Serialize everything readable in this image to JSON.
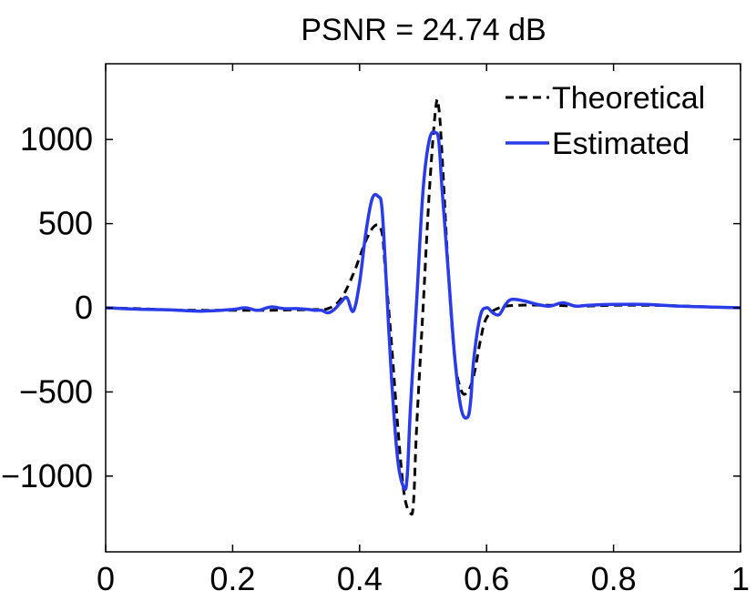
{
  "chart_data": {
    "type": "line",
    "title": "PSNR = 24.74 dB",
    "xlabel": "",
    "ylabel": "",
    "xlim": [
      0,
      1
    ],
    "ylim": [
      -1450,
      1450
    ],
    "x_ticks": [
      0,
      0.2,
      0.4,
      0.6,
      0.8,
      1
    ],
    "x_tick_labels": [
      "0",
      "0.2",
      "0.4",
      "0.6",
      "0.8",
      "1"
    ],
    "y_ticks": [
      -1000,
      -500,
      0,
      500,
      1000
    ],
    "y_tick_labels": [
      "−1000",
      "−500",
      "0",
      "500",
      "1000"
    ],
    "grid": false,
    "legend_position": "top-right",
    "series": [
      {
        "name": "Theoretical",
        "color": "#000000",
        "style": "dashed",
        "x": [
          0,
          0.05,
          0.1,
          0.15,
          0.2,
          0.25,
          0.3,
          0.33,
          0.35,
          0.37,
          0.39,
          0.41,
          0.425,
          0.435,
          0.44,
          0.45,
          0.46,
          0.47,
          0.48,
          0.485,
          0.49,
          0.5,
          0.51,
          0.52,
          0.525,
          0.53,
          0.54,
          0.55,
          0.56,
          0.57,
          0.58,
          0.59,
          0.6,
          0.62,
          0.65,
          0.7,
          0.75,
          0.8,
          0.85,
          0.9,
          0.95,
          1
        ],
        "y": [
          0,
          -5,
          -12,
          -15,
          -15,
          -15,
          -12,
          -10,
          -5,
          50,
          200,
          400,
          490,
          450,
          250,
          -200,
          -700,
          -1100,
          -1220,
          -1150,
          -700,
          0,
          700,
          1190,
          1180,
          900,
          200,
          -300,
          -490,
          -500,
          -400,
          -200,
          -60,
          0,
          15,
          15,
          10,
          15,
          15,
          12,
          5,
          0
        ]
      },
      {
        "name": "Estimated",
        "color": "#2a3bea",
        "style": "solid",
        "x": [
          0,
          0.05,
          0.1,
          0.15,
          0.2,
          0.22,
          0.24,
          0.26,
          0.28,
          0.3,
          0.32,
          0.33,
          0.34,
          0.35,
          0.36,
          0.37,
          0.38,
          0.39,
          0.4,
          0.41,
          0.42,
          0.43,
          0.435,
          0.44,
          0.45,
          0.46,
          0.47,
          0.475,
          0.48,
          0.49,
          0.5,
          0.51,
          0.52,
          0.525,
          0.53,
          0.54,
          0.55,
          0.56,
          0.57,
          0.575,
          0.58,
          0.59,
          0.6,
          0.61,
          0.62,
          0.63,
          0.64,
          0.66,
          0.68,
          0.7,
          0.72,
          0.74,
          0.76,
          0.8,
          0.85,
          0.9,
          0.95,
          1
        ],
        "y": [
          0,
          -8,
          -12,
          -20,
          -10,
          0,
          -15,
          5,
          -5,
          -5,
          -10,
          -15,
          -15,
          -30,
          -10,
          30,
          60,
          -20,
          150,
          450,
          650,
          660,
          600,
          300,
          -400,
          -900,
          -1070,
          -1000,
          -600,
          50,
          700,
          1000,
          1040,
          980,
          700,
          200,
          -300,
          -600,
          -650,
          -550,
          -300,
          -50,
          0,
          -30,
          -40,
          20,
          50,
          40,
          20,
          10,
          30,
          10,
          15,
          20,
          20,
          10,
          5,
          0
        ]
      }
    ]
  }
}
